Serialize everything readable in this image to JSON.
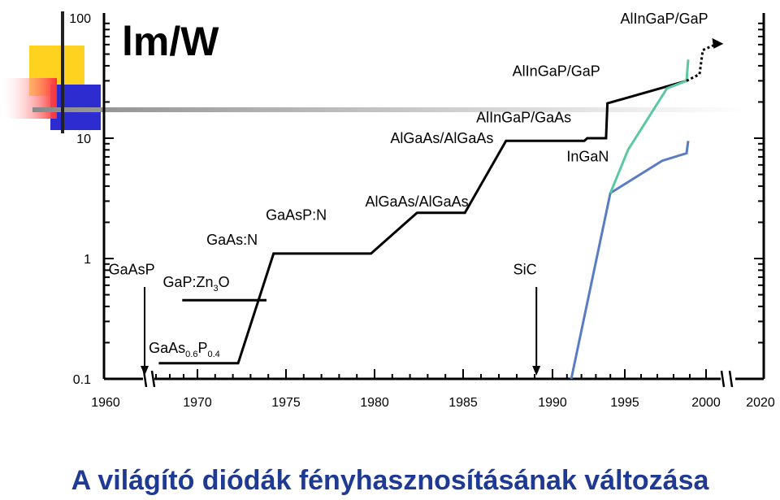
{
  "chart_data": {
    "type": "line",
    "title": "lm/W",
    "caption": "A világító diódák fényhasznosításának változása",
    "y_scale": "log",
    "ylim": [
      0.1,
      100
    ],
    "y_ticks": [
      "0.1",
      "1",
      "10",
      "100"
    ],
    "xlim": [
      1960,
      2020
    ],
    "x_ticks": [
      "1960",
      "1970",
      "1975",
      "1980",
      "1985",
      "1990",
      "1995",
      "2000",
      "2020"
    ],
    "colors": {
      "main": "#000000",
      "ingan_green": "#5cc8a0",
      "ingan_blue": "#5a7cc4",
      "caption": "#1f3a93"
    },
    "series": [
      {
        "id": "main-black",
        "color": "#000000",
        "points": [
          [
            1967.2,
            0.135
          ],
          [
            1972.3,
            0.135
          ],
          [
            1974.3,
            1.1
          ],
          [
            1979.8,
            1.1
          ],
          [
            1982.4,
            2.4
          ],
          [
            1985.1,
            2.4
          ],
          [
            1987.4,
            9.5
          ],
          [
            1992.2,
            9.5
          ],
          [
            1992.4,
            10.0
          ],
          [
            1993.7,
            10.0
          ],
          [
            1993.8,
            19.5
          ],
          [
            1998.8,
            30.0
          ]
        ]
      },
      {
        "id": "gaas-zn",
        "color": "#000000",
        "points": [
          [
            1968.9,
            0.45
          ],
          [
            1973.9,
            0.45
          ]
        ]
      },
      {
        "id": "ingan-blue",
        "color": "#5a7cc4",
        "points": [
          [
            1991.3,
            0.1
          ],
          [
            1994.0,
            3.5
          ],
          [
            1997.3,
            6.5
          ],
          [
            1998.8,
            7.5
          ],
          [
            1998.9,
            9.5
          ]
        ]
      },
      {
        "id": "ingan-green",
        "color": "#5cc8a0",
        "points": [
          [
            1994.0,
            3.5
          ],
          [
            1995.2,
            8.0
          ],
          [
            1997.6,
            26.0
          ],
          [
            1998.8,
            30.0
          ],
          [
            1998.9,
            45.0
          ]
        ]
      },
      {
        "id": "future-dotted",
        "color": "#000000",
        "dashed": true,
        "points": [
          [
            1998.8,
            30.0
          ],
          [
            1999.6,
            34.0
          ],
          [
            1999.8,
            54.0
          ],
          [
            2002.2,
            60.0
          ]
        ]
      }
    ],
    "labels": [
      {
        "text": "AlInGaP/GaP",
        "x": 2000.5,
        "y": 90,
        "anchor": "end"
      },
      {
        "text": "AlInGaP/GaP",
        "x": 1993.3,
        "y": 33,
        "anchor": "end"
      },
      {
        "text": "AlInGaP/GaAs",
        "x": 1991.3,
        "y": 13.5,
        "anchor": "end"
      },
      {
        "text": "AlGaAs/AlGaAs",
        "x": 1986.7,
        "y": 9.1,
        "anchor": "end"
      },
      {
        "text": "InGaN",
        "x": 1993.9,
        "y": 6.4,
        "anchor": "end"
      },
      {
        "text": "AlGaAs/AlGaAs",
        "x": 1985.3,
        "y": 2.7,
        "anchor": "end"
      },
      {
        "text": "GaAsP:N",
        "x": 1977.3,
        "y": 2.1,
        "anchor": "end"
      },
      {
        "text": "GaAs:N",
        "x": 1973.4,
        "y": 1.3,
        "anchor": "end"
      },
      {
        "text": "GaAsP",
        "x": 1960.3,
        "y": 0.74,
        "anchor": "start"
      },
      {
        "text": "SiC",
        "x": 1987.8,
        "y": 0.74,
        "anchor": "start"
      }
    ],
    "subscript_labels": [
      {
        "parts": [
          [
            "GaP:Zn",
            ""
          ],
          [
            "3",
            "sub"
          ],
          [
            "O",
            ""
          ]
        ],
        "x": 1967.5,
        "y": 0.58
      },
      {
        "parts": [
          [
            "GaAs",
            ""
          ],
          [
            "0.6",
            "sub"
          ],
          [
            "P",
            ""
          ],
          [
            "0.4",
            "sub"
          ]
        ],
        "x": 1965.1,
        "y": 0.165
      }
    ],
    "arrows": [
      {
        "id": "gaasp-arrow",
        "x": 1964.0,
        "y_from": 0.58,
        "y_to": 0.1
      },
      {
        "id": "sic-arrow",
        "x": 1989.1,
        "y_from": 0.58,
        "y_to": 0.1
      }
    ]
  }
}
